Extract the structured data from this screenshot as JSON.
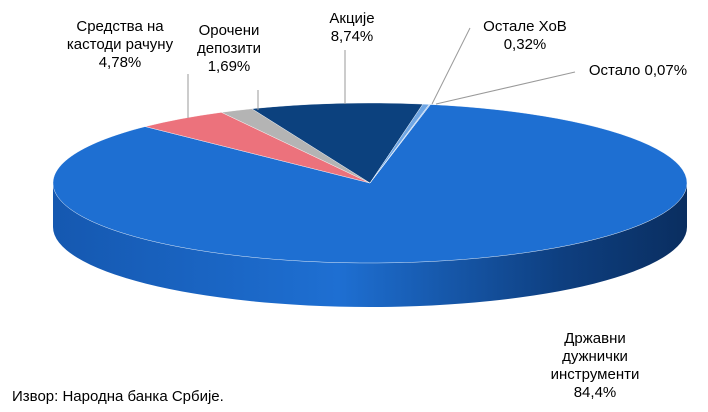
{
  "chart_data": {
    "type": "pie3d",
    "categories": [
      "Државни дужнички инструменти",
      "Средства на кастоди рачуну",
      "Орочени депозити",
      "Акције",
      "Остале ХоВ",
      "Остало"
    ],
    "values": [
      84.4,
      4.78,
      1.69,
      8.74,
      0.32,
      0.07
    ],
    "value_labels": [
      "84,4%",
      "4,78%",
      "1,69%",
      "8,74%",
      "0,32%",
      "0,07%"
    ],
    "colors": [
      "#1e6fd2",
      "#ec727c",
      "#b4b4b4",
      "#0c417e",
      "#6fa6e4",
      "#a9c9f2"
    ],
    "source": "Извор: Народна банка Србије."
  }
}
